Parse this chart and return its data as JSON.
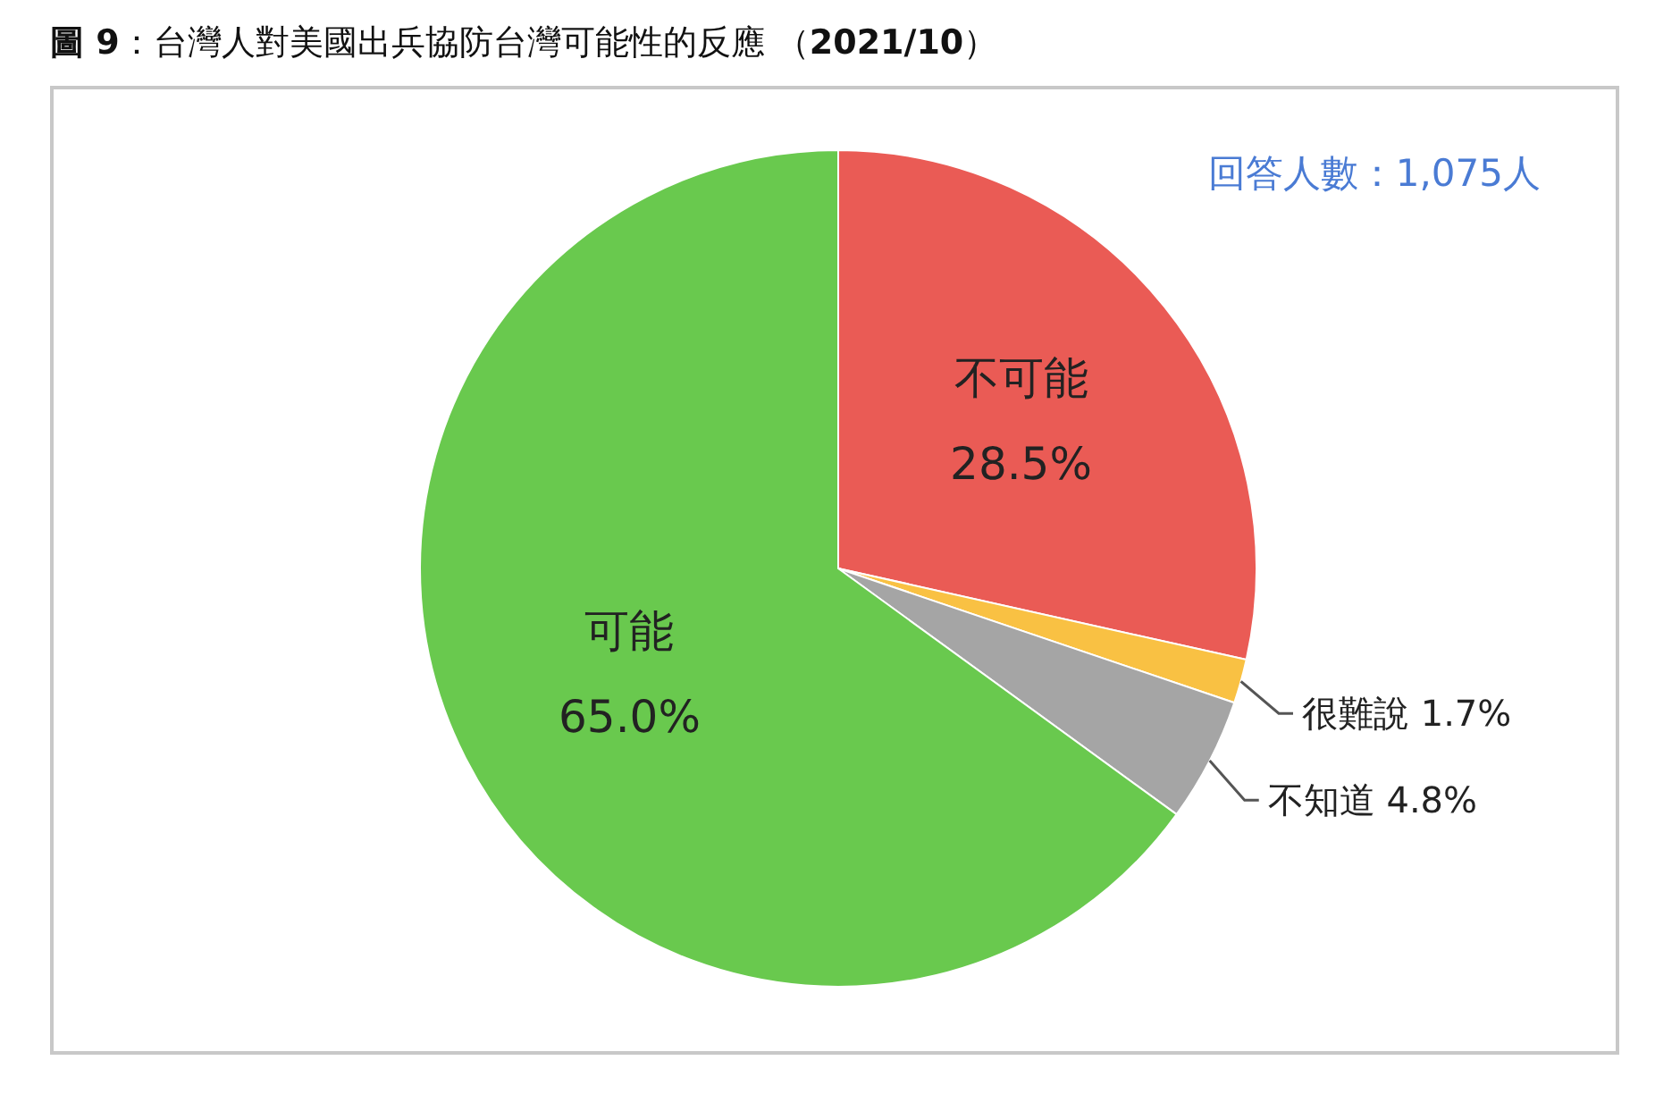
{
  "chart_data": {
    "type": "pie",
    "title": "**圖 9**：台灣人對美國出兵協防台灣可能性的反應 （**2021/10**）",
    "categories": [
      "不可能",
      "很難說",
      "不知道",
      "可能"
    ],
    "values": [
      28.5,
      1.7,
      4.8,
      65.0
    ],
    "value_labels": [
      "28.5%",
      "1.7%",
      "4.8%",
      "65.0%"
    ],
    "colors": [
      "#ea5b55",
      "#f9c143",
      "#a5a5a5",
      "#69c94e"
    ],
    "annotations": [
      "回答人數：1,075人"
    ]
  }
}
